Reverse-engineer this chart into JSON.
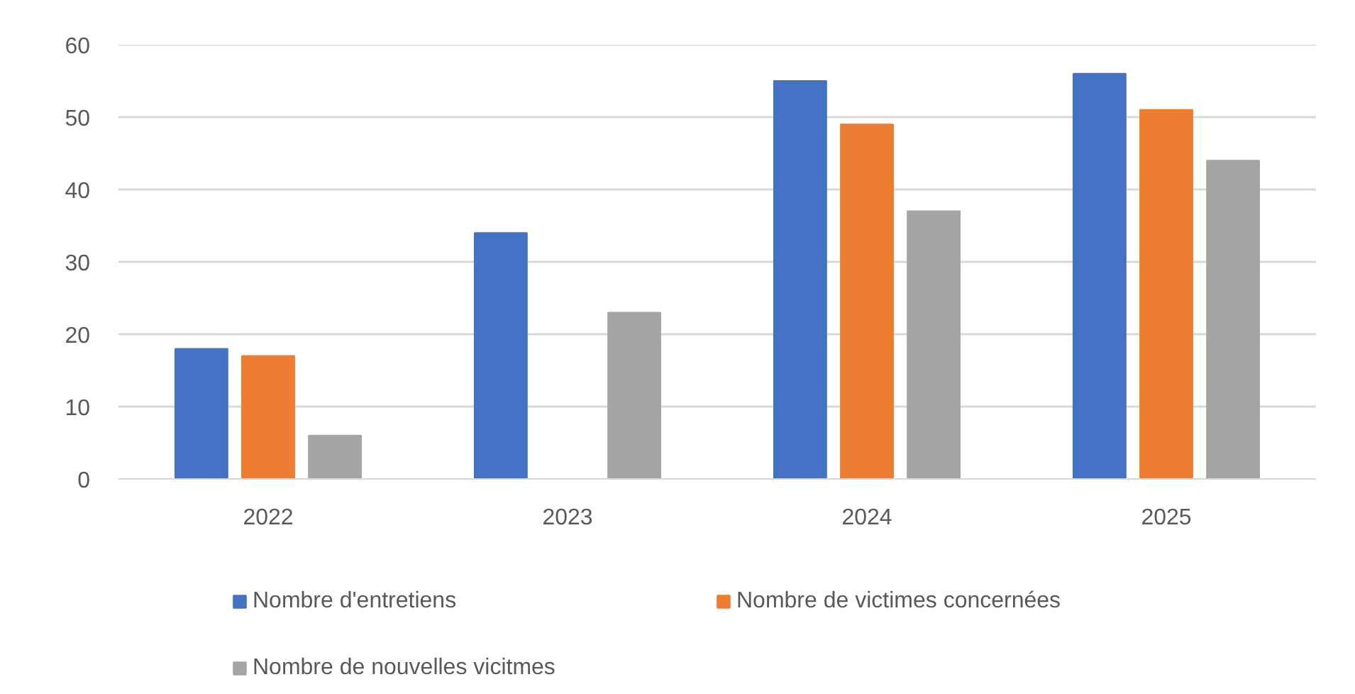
{
  "chart_data": {
    "type": "bar",
    "categories": [
      "2022",
      "2023",
      "2024",
      "2025"
    ],
    "series": [
      {
        "name": "Nombre d'entretiens",
        "color": "#4472c4",
        "values": [
          18,
          34,
          55,
          56
        ]
      },
      {
        "name": "Nombre de victimes concernées",
        "color": "#ed7d31",
        "values": [
          17,
          null,
          49,
          51
        ]
      },
      {
        "name": "Nombre de nouvelles vicitmes",
        "color": "#a5a5a5",
        "values": [
          6,
          23,
          37,
          44
        ]
      }
    ],
    "ylim": [
      0,
      60
    ],
    "yticks": [
      0,
      10,
      20,
      30,
      40,
      50,
      60
    ],
    "grid": "y",
    "legend": "bottom"
  }
}
